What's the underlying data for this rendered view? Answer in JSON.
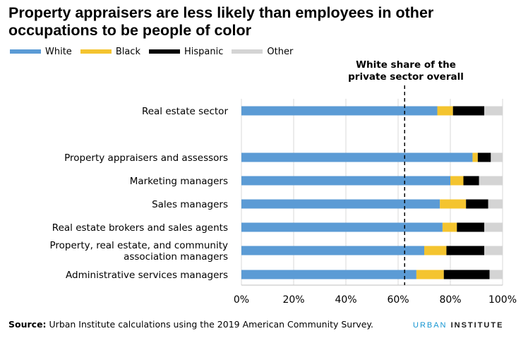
{
  "title": "Property appraisers are less likely than employees in other occupations to be people of color",
  "reference_label": "White share of the private sector overall",
  "source_label": "Source:",
  "source_text": "Urban Institute calculations using the 2019 American Community Survey.",
  "brand": {
    "part1": "URBAN",
    "part2": "INSTITUTE"
  },
  "chart_data": {
    "type": "bar",
    "orientation": "horizontal",
    "stacked": true,
    "title": "Property appraisers are less likely than employees in other occupations to be people of color",
    "categories": [
      "Real estate sector",
      "Property appraisers and assessors",
      "Marketing managers",
      "Sales managers",
      "Real estate brokers and sales agents",
      "Property, real estate, and community association managers",
      "Administrative services managers"
    ],
    "category_lines": [
      [
        "Real estate sector"
      ],
      [
        "Property appraisers and assessors"
      ],
      [
        "Marketing managers"
      ],
      [
        "Sales managers"
      ],
      [
        "Real estate brokers and sales agents"
      ],
      [
        "Property, real estate, and community",
        "association managers"
      ],
      [
        "Administrative services managers"
      ]
    ],
    "series": [
      {
        "name": "White",
        "color": "#5b9bd5",
        "values": [
          75,
          88.5,
          80,
          76,
          77,
          70,
          67
        ]
      },
      {
        "name": "Black",
        "color": "#f4c42f",
        "values": [
          6,
          2,
          5,
          10,
          5.5,
          8.5,
          10.5
        ]
      },
      {
        "name": "Hispanic",
        "color": "#000000",
        "values": [
          12,
          5,
          6,
          8.5,
          10.5,
          14.5,
          17.5
        ]
      },
      {
        "name": "Other",
        "color": "#d4d4d4",
        "values": [
          7,
          4.5,
          9,
          5.5,
          7,
          7,
          5
        ]
      }
    ],
    "reference_line": {
      "value": 62.5
    },
    "xlim": [
      0,
      100
    ],
    "xticks": [
      "0%",
      "20%",
      "40%",
      "60%",
      "80%",
      "100%"
    ],
    "xtick_values": [
      0,
      20,
      40,
      60,
      80,
      100
    ],
    "legend_position": "top-left",
    "grid": true
  }
}
